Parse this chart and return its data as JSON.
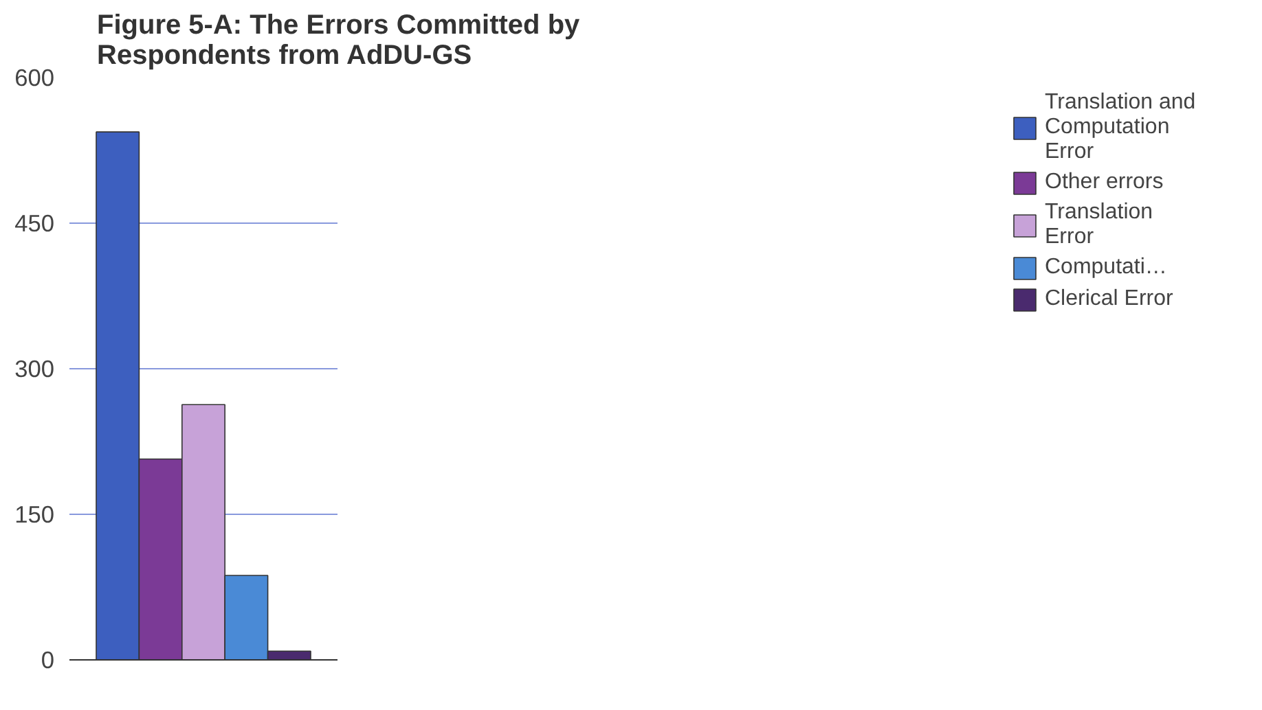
{
  "chart_data": {
    "type": "bar",
    "title": "Figure 5-A: The Errors Committed by Respondents from AdDU-GS",
    "categories": [
      null
    ],
    "series": [
      {
        "name": "Translation and Computation Error",
        "color": "#3d5fbf",
        "values": [
          544
        ]
      },
      {
        "name": "Other errors",
        "color": "#7b3a96",
        "values": [
          207
        ]
      },
      {
        "name": "Translation Error",
        "color": "#c7a2d8",
        "values": [
          263
        ]
      },
      {
        "name": "Computati…",
        "color": "#4a8ad6",
        "values": [
          87
        ]
      },
      {
        "name": "Clerical Error",
        "color": "#4a2a6e",
        "values": [
          9
        ]
      }
    ],
    "ylim": [
      0,
      600
    ],
    "yticks": [
      0,
      150,
      300,
      450,
      600
    ],
    "grid": "y",
    "legend": "right"
  }
}
